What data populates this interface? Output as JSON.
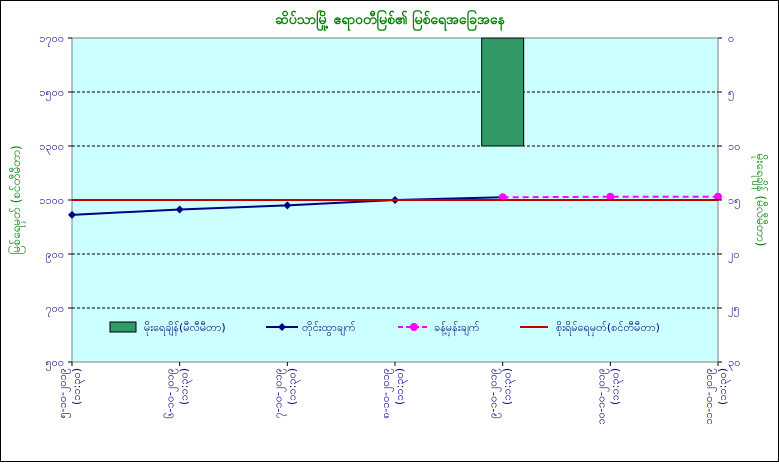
{
  "chart_data": {
    "type": "line",
    "title": "ဆိပ်သာမြို့ ဧရာဝတီမြစ်၏ မြစ်ရေအခြေအနေ",
    "ylabel_left": "မြစ်ရေမှတ် (စင်တီမီတာ)",
    "ylabel_right": "မိုးရေချိန် (မီလီမီတာ)",
    "left_axis": {
      "min": 500,
      "max": 1700,
      "step": 200,
      "tick_labels": [
        "၁၇၀၀",
        "၁၅၀၀",
        "၁၃၀၀",
        "၁၁၀၀",
        "၉၀၀",
        "၇၀၀",
        "၅၀၀"
      ]
    },
    "right_axis": {
      "min": 0,
      "max": 30,
      "step": 5,
      "reversed": true,
      "tick_labels": [
        "၀",
        "၅",
        "၁၀",
        "၁၅",
        "၂၀",
        "၂၅",
        "၃၀"
      ]
    },
    "categories": [
      [
        "၅-၁၀-၂၀၁၉",
        "(၁၁:၃၀)"
      ],
      [
        "၆-၁၀-၂၀၁၉",
        "(၁၁:၃၀)"
      ],
      [
        "၇-၁၀-၂၀၁၉",
        "(၁၁:၃၀)"
      ],
      [
        "၈-၁၀-၂၀၁၉",
        "(၁၁:၃၀)"
      ],
      [
        "၉-၁၀-၂၀၁၉",
        "(၁၁:၃၀)"
      ],
      [
        "၁၀-၁၀-၂၀၁၉",
        "(၁၁:၃၀)"
      ],
      [
        "၁၁-၁၀-၂၀၁၉",
        "(၁၁:၃၀)"
      ]
    ],
    "series": [
      {
        "name": "မိုးရေချိန်(မီလီမီတာ)",
        "kind": "bar",
        "axis": "right",
        "color": "#339966",
        "values": [
          0,
          0,
          0,
          0,
          10,
          0,
          0
        ]
      },
      {
        "name": "တိုင်းထွာချက်",
        "kind": "line",
        "axis": "left",
        "color": "#000080",
        "values": [
          1045,
          1065,
          1080,
          1100,
          1110,
          null,
          null
        ]
      },
      {
        "name": "ခန့်မှန်းချက်",
        "kind": "line-dashed",
        "axis": "left",
        "color": "#ff00ff",
        "values": [
          null,
          null,
          null,
          null,
          1110,
          1112,
          1112
        ]
      },
      {
        "name": "စိုးရိမ်ရေမှတ်(စင်တီမီတာ)",
        "kind": "hline",
        "axis": "left",
        "color": "#c00000",
        "values": [
          1100,
          1100,
          1100,
          1100,
          1100,
          1100,
          1100
        ]
      }
    ],
    "grid": true,
    "legend_position": "bottom-inside",
    "colors": {
      "plot_bg": "#ccffff",
      "axis_text": "#000080",
      "title": "#008000",
      "ylabel": "#008000"
    }
  }
}
